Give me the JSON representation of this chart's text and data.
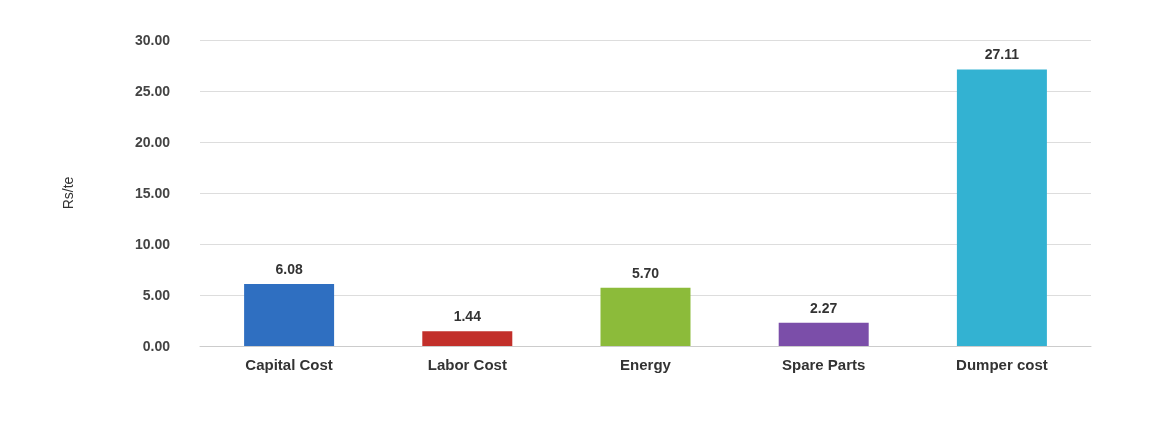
{
  "chart_data": {
    "type": "bar",
    "ylabel": "Rs/te",
    "categories": [
      "Capital Cost",
      "Labor Cost",
      "Energy",
      "Spare Parts",
      "Dumper cost"
    ],
    "values": [
      6.08,
      1.44,
      5.7,
      2.27,
      27.11
    ],
    "value_labels": [
      "6.08",
      "1.44",
      "5.70",
      "2.27",
      "27.11"
    ],
    "colors": [
      "#2f6fc1",
      "#c22f2a",
      "#8cbb3a",
      "#7b4ea9",
      "#33b2d2"
    ],
    "ylim": [
      0,
      30
    ],
    "yticks": [
      {
        "value": 0,
        "label": "0.00"
      },
      {
        "value": 5,
        "label": "5.00"
      },
      {
        "value": 10,
        "label": "10.00"
      },
      {
        "value": 15,
        "label": "15.00"
      },
      {
        "value": 20,
        "label": "20.00"
      },
      {
        "value": 25,
        "label": "25.00"
      },
      {
        "value": 30,
        "label": "30.00"
      }
    ],
    "grid": "y"
  }
}
